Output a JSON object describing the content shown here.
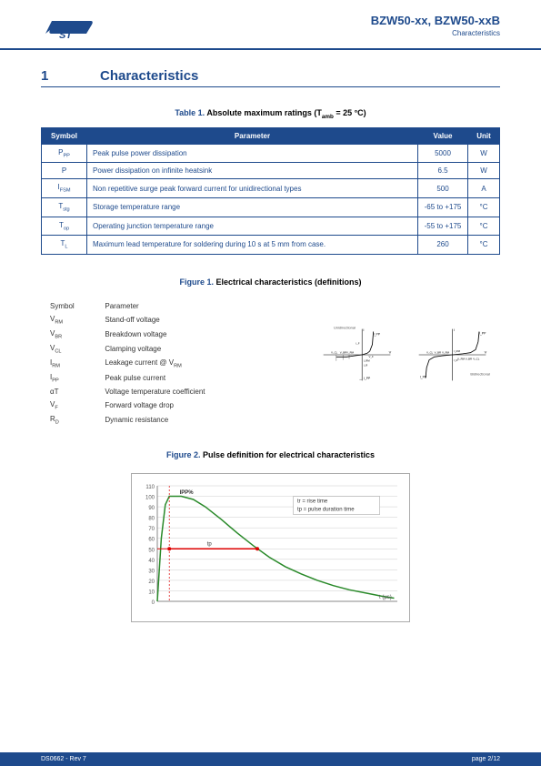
{
  "header": {
    "product_title": "BZW50-xx, BZW50-xxB",
    "subtitle": "Characteristics"
  },
  "section": {
    "number": "1",
    "title": "Characteristics"
  },
  "table1": {
    "caption_prefix": "Table 1. ",
    "caption": "Absolute maximum ratings (T",
    "caption_sub": "amb",
    "caption_suffix": " = 25 °C)",
    "headers": [
      "Symbol",
      "Parameter",
      "Value",
      "Unit"
    ],
    "rows": [
      {
        "symbol": "P",
        "sub": "PP",
        "param": "Peak pulse power dissipation",
        "value": "5000",
        "unit": "W"
      },
      {
        "symbol": "P",
        "sub": "",
        "param": "Power dissipation on infinite heatsink",
        "value": "6.5",
        "unit": "W"
      },
      {
        "symbol": "I",
        "sub": "FSM",
        "param": "Non repetitive surge peak forward current for unidirectional types",
        "value": "500",
        "unit": "A"
      },
      {
        "symbol": "T",
        "sub": "stg",
        "param": "Storage temperature range",
        "value": "-65 to +175",
        "unit": "°C"
      },
      {
        "symbol": "T",
        "sub": "op",
        "param": "Operating junction temperature range",
        "value": "-55 to +175",
        "unit": "°C"
      },
      {
        "symbol": "T",
        "sub": "L",
        "param": "Maximum lead temperature for soldering during 10 s at 5 mm from case.",
        "value": "260",
        "unit": "°C"
      }
    ]
  },
  "figure1": {
    "caption_prefix": "Figure 1. ",
    "caption": "Electrical characteristics (definitions)",
    "definitions": [
      {
        "symbol": "Symbol",
        "param": "Parameter"
      },
      {
        "symbol": "V_RM",
        "param": "Stand-off voltage"
      },
      {
        "symbol": "V_BR",
        "param": "Breakdown voltage"
      },
      {
        "symbol": "V_CL",
        "param": "Clamping voltage"
      },
      {
        "symbol": "I_RM",
        "param": "Leakage current @ V_RM"
      },
      {
        "symbol": "I_PP",
        "param": "Peak pulse current"
      },
      {
        "symbol": "αT",
        "param": "Voltage temperature coefficient"
      },
      {
        "symbol": "V_F",
        "param": "Forward voltage drop"
      },
      {
        "symbol": "R_D",
        "param": "Dynamic resistance"
      }
    ],
    "labels": {
      "unidir": "Unidirectional",
      "bidir": "Bidirectional",
      "vcl": "V_CL",
      "vbr": "V_BR",
      "vrm": "V_RM",
      "irm": "I_RM",
      "ir": "I_R",
      "ipp": "I_PP",
      "if": "I_F",
      "vf": "V_F",
      "i": "I",
      "v": "V"
    }
  },
  "figure2": {
    "caption_prefix": "Figure 2. ",
    "caption": "Pulse definition for electrical characteristics",
    "ylabel": "IPP%",
    "yticks": [
      0,
      10,
      20,
      30,
      40,
      50,
      60,
      70,
      80,
      90,
      100,
      110
    ],
    "xlabel": "t (μs)",
    "legend_tr": "tr = rise time",
    "legend_tp": "tp = pulse duration time",
    "tp_label": "tp",
    "curve_color": "#2a8a2a",
    "axis_color": "#888888",
    "grid_color": "#cccccc",
    "marker_color": "#dd0000",
    "ylim": [
      0,
      110
    ],
    "curve": [
      [
        0,
        0
      ],
      [
        5,
        60
      ],
      [
        10,
        92
      ],
      [
        15,
        100
      ],
      [
        30,
        100
      ],
      [
        45,
        97
      ],
      [
        60,
        90
      ],
      [
        80,
        78
      ],
      [
        100,
        65
      ],
      [
        120,
        53
      ],
      [
        140,
        42
      ],
      [
        160,
        33
      ],
      [
        180,
        26
      ],
      [
        200,
        20
      ],
      [
        220,
        15
      ],
      [
        240,
        11
      ],
      [
        260,
        8
      ],
      [
        280,
        5
      ],
      [
        296,
        3
      ]
    ]
  },
  "footer": {
    "left": "DS0662 - Rev 7",
    "right": "page 2/12"
  }
}
